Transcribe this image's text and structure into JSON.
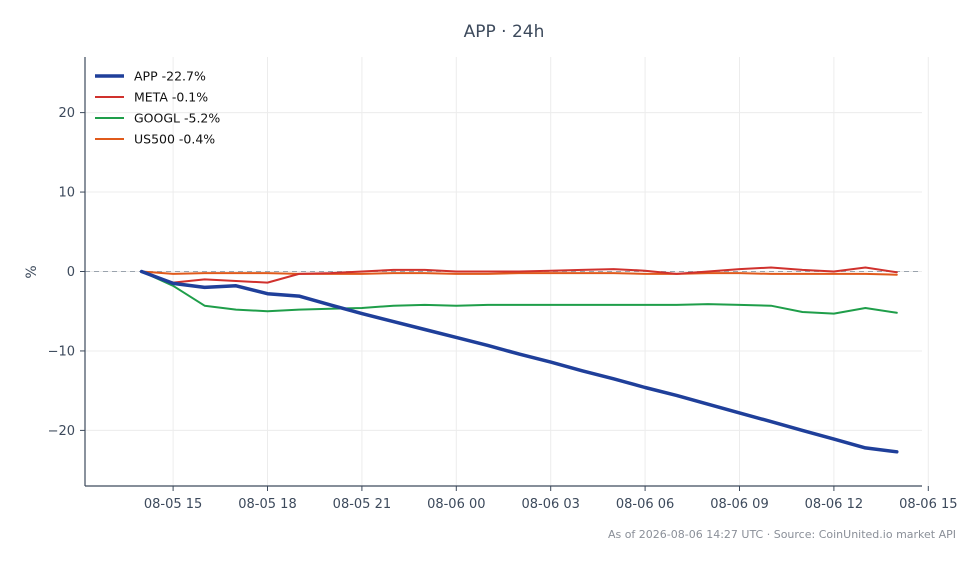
{
  "chart_data": {
    "type": "line",
    "title": "APP · 24h",
    "ylabel": "%",
    "xlabel": "",
    "grid": true,
    "legend_position": "top-left",
    "ylim": [
      -27,
      27
    ],
    "xlim": [
      -1.8,
      24.8
    ],
    "x_unit": "hours since 08-05 14:00",
    "yticks": [
      20,
      10,
      0,
      -10,
      -20
    ],
    "ytick_labels": [
      "20",
      "10",
      "0",
      "−10",
      "−20"
    ],
    "xticks": [
      1,
      4,
      7,
      10,
      13,
      16,
      19,
      22,
      25
    ],
    "xtick_labels": [
      "08-05 15",
      "08-05 18",
      "08-05 21",
      "08-06 00",
      "08-06 03",
      "08-06 06",
      "08-06 09",
      "08-06 12",
      "08-06 15"
    ],
    "zero_line": true,
    "x": [
      0,
      1,
      2,
      3,
      4,
      5,
      6,
      7,
      8,
      9,
      10,
      11,
      12,
      13,
      14,
      15,
      16,
      17,
      18,
      19,
      20,
      21,
      22,
      23,
      24
    ],
    "series": [
      {
        "name": "APP -22.7%",
        "color": "#1f3f9a",
        "width": 3.5,
        "values": [
          0,
          -1.5,
          -2.0,
          -1.8,
          -2.8,
          -3.1,
          -4.2,
          -5.3,
          -6.3,
          -7.3,
          -8.3,
          -9.3,
          -10.4,
          -11.4,
          -12.5,
          -13.5,
          -14.6,
          -15.6,
          -16.7,
          -17.8,
          -18.9,
          -20.0,
          -21.1,
          -22.2,
          -22.7
        ]
      },
      {
        "name": "META -0.1%",
        "color": "#d0312d",
        "width": 2,
        "values": [
          0,
          -1.4,
          -1.0,
          -1.2,
          -1.4,
          -0.3,
          -0.2,
          0.0,
          0.2,
          0.2,
          0.0,
          0.0,
          0.0,
          0.1,
          0.2,
          0.3,
          0.1,
          -0.3,
          0.0,
          0.3,
          0.5,
          0.2,
          0.0,
          0.5,
          -0.1
        ]
      },
      {
        "name": "GOOGL -5.2%",
        "color": "#1f9e4a",
        "width": 2,
        "values": [
          0,
          -1.8,
          -4.3,
          -4.8,
          -5.0,
          -4.8,
          -4.7,
          -4.6,
          -4.3,
          -4.2,
          -4.3,
          -4.2,
          -4.2,
          -4.2,
          -4.2,
          -4.2,
          -4.2,
          -4.2,
          -4.1,
          -4.2,
          -4.3,
          -5.1,
          -5.3,
          -4.6,
          -5.2
        ]
      },
      {
        "name": "US500 -0.4%",
        "color": "#e05a1b",
        "width": 2,
        "values": [
          0,
          -0.3,
          -0.2,
          -0.2,
          -0.2,
          -0.3,
          -0.3,
          -0.3,
          -0.2,
          -0.2,
          -0.3,
          -0.3,
          -0.2,
          -0.2,
          -0.2,
          -0.2,
          -0.3,
          -0.3,
          -0.2,
          -0.2,
          -0.3,
          -0.3,
          -0.3,
          -0.3,
          -0.4
        ]
      }
    ]
  },
  "footer": {
    "text": "As of 2026-08-06 14:27 UTC · Source: CoinUnited.io market API"
  },
  "colors": {
    "axis": "#3d4a5c",
    "grid": "#ececec",
    "zero_line": "#9aa3ad",
    "background": "#ffffff"
  }
}
